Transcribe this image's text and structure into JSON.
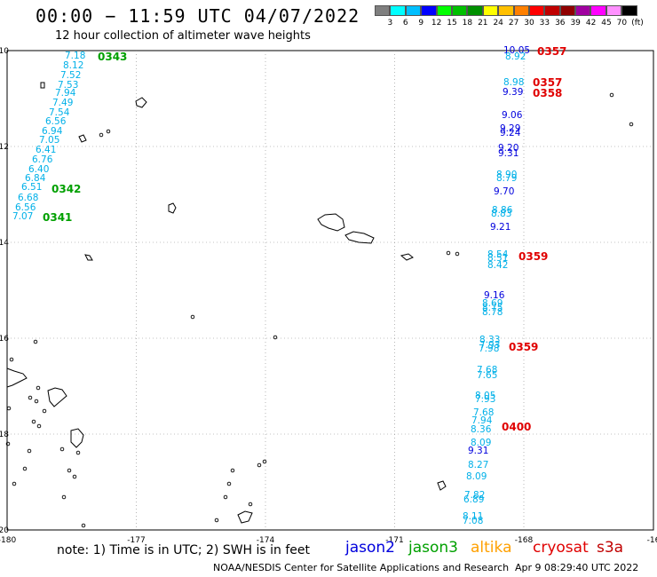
{
  "title": "00:00 − 11:59 UTC 04/07/2022",
  "subtitle": "12 hour collection of altimeter wave heights",
  "colorbar": {
    "colors": [
      "#7f7f7f",
      "#00ffff",
      "#00bfff",
      "#0000ff",
      "#00ff00",
      "#00c000",
      "#009000",
      "#ffff00",
      "#ffc000",
      "#ff8000",
      "#ff0000",
      "#c00000",
      "#900000",
      "#a000a0",
      "#ff00ff",
      "#ff90ff",
      "#000000"
    ],
    "labels": [
      "3",
      "6",
      "9",
      "12",
      "15",
      "18",
      "21",
      "24",
      "27",
      "30",
      "33",
      "36",
      "39",
      "42",
      "45",
      "70"
    ],
    "unit": "(ft)"
  },
  "axes": {
    "lon_labels": [
      "-180",
      "-177",
      "-174",
      "-171",
      "-168",
      "-16"
    ],
    "lat_labels": [
      "-10",
      "-12",
      "-14",
      "-16",
      "-18",
      "-20"
    ]
  },
  "tracks": [
    {
      "satellite": "jason3",
      "values": [
        "7.18",
        "8.12",
        "7.52",
        "7.53",
        "7.94",
        "7.49",
        "7.54",
        "6.56",
        "6.94",
        "7.05",
        "6.41",
        "6.76",
        "6.40",
        "6.84",
        "6.51",
        "6.68",
        "6.56",
        "7.07"
      ],
      "times": [
        "0343",
        "0342",
        "0341"
      ]
    },
    {
      "satellite": "cryosat",
      "values": [
        "10.05",
        "8.92",
        "8.98",
        "9.39",
        "9.06",
        "9.29",
        "9.24",
        "9.20",
        "9.31",
        "8.90",
        "8.79",
        "9.70",
        "8.86",
        "8.83",
        "9.21",
        "8.54",
        "8.51",
        "8.42",
        "9.16",
        "8.69",
        "8.75",
        "8.78",
        "8.33",
        "7.93",
        "7.98",
        "7.68",
        "7.65",
        "8.05",
        "7.93",
        "7.68",
        "7.94",
        "8.36",
        "8.09",
        "9.31",
        "8.27",
        "8.09",
        "7.82",
        "6.89",
        "8.11",
        "7.08"
      ],
      "times": [
        "0357",
        "0358",
        "0358",
        "0359",
        "0400"
      ]
    }
  ],
  "note": "note: 1) Time is in UTC; 2) SWH is in feet",
  "legend": [
    {
      "name": "jason2",
      "color": "#0000dd"
    },
    {
      "name": "jason3",
      "color": "#00a000"
    },
    {
      "name": "altika",
      "color": "#ffa000"
    },
    {
      "name": "cryosat",
      "color": "#e00000"
    },
    {
      "name": "s3a",
      "color": "#c00000"
    }
  ],
  "credit": "NOAA/NESDIS Center for Satellite Applications and Research",
  "timestamp": "Apr  9 08:29:40 UTC 2022"
}
